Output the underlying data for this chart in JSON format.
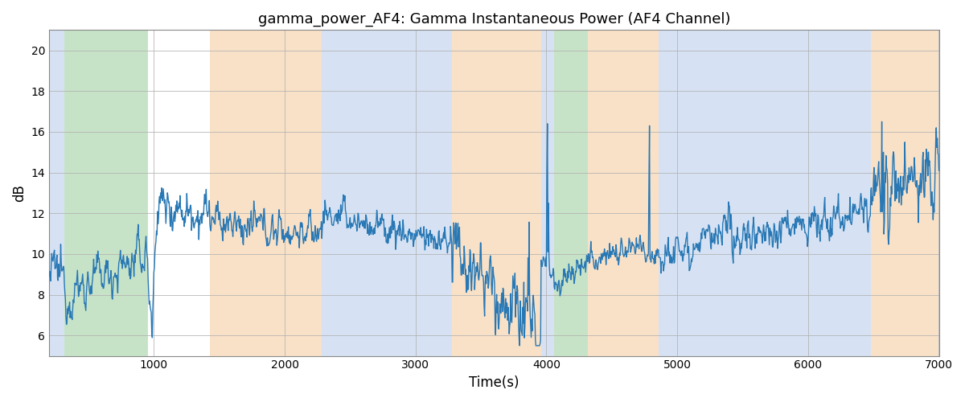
{
  "title": "gamma_power_AF4: Gamma Instantaneous Power (AF4 Channel)",
  "xlabel": "Time(s)",
  "ylabel": "dB",
  "xlim": [
    200,
    7000
  ],
  "ylim": [
    5,
    21
  ],
  "yticks": [
    6,
    8,
    10,
    12,
    14,
    16,
    18,
    20
  ],
  "xticks": [
    1000,
    2000,
    3000,
    4000,
    5000,
    6000,
    7000
  ],
  "line_color": "#2878b5",
  "line_width": 1.0,
  "grid_color": "#b0b0b0",
  "bands": [
    {
      "xmin": 200,
      "xmax": 315,
      "color": "#aec6e8",
      "alpha": 0.5
    },
    {
      "xmin": 315,
      "xmax": 955,
      "color": "#90c990",
      "alpha": 0.5
    },
    {
      "xmin": 1430,
      "xmax": 2280,
      "color": "#f5c99a",
      "alpha": 0.55
    },
    {
      "xmin": 2280,
      "xmax": 3280,
      "color": "#aec6e8",
      "alpha": 0.5
    },
    {
      "xmin": 3280,
      "xmax": 3960,
      "color": "#f5c99a",
      "alpha": 0.55
    },
    {
      "xmin": 3960,
      "xmax": 4060,
      "color": "#aec6e8",
      "alpha": 0.5
    },
    {
      "xmin": 4060,
      "xmax": 4320,
      "color": "#90c990",
      "alpha": 0.5
    },
    {
      "xmin": 4320,
      "xmax": 4860,
      "color": "#f5c99a",
      "alpha": 0.55
    },
    {
      "xmin": 4860,
      "xmax": 6480,
      "color": "#aec6e8",
      "alpha": 0.5
    },
    {
      "xmin": 6480,
      "xmax": 7000,
      "color": "#f5c99a",
      "alpha": 0.55
    }
  ],
  "figsize": [
    12.0,
    5.0
  ],
  "dpi": 100
}
